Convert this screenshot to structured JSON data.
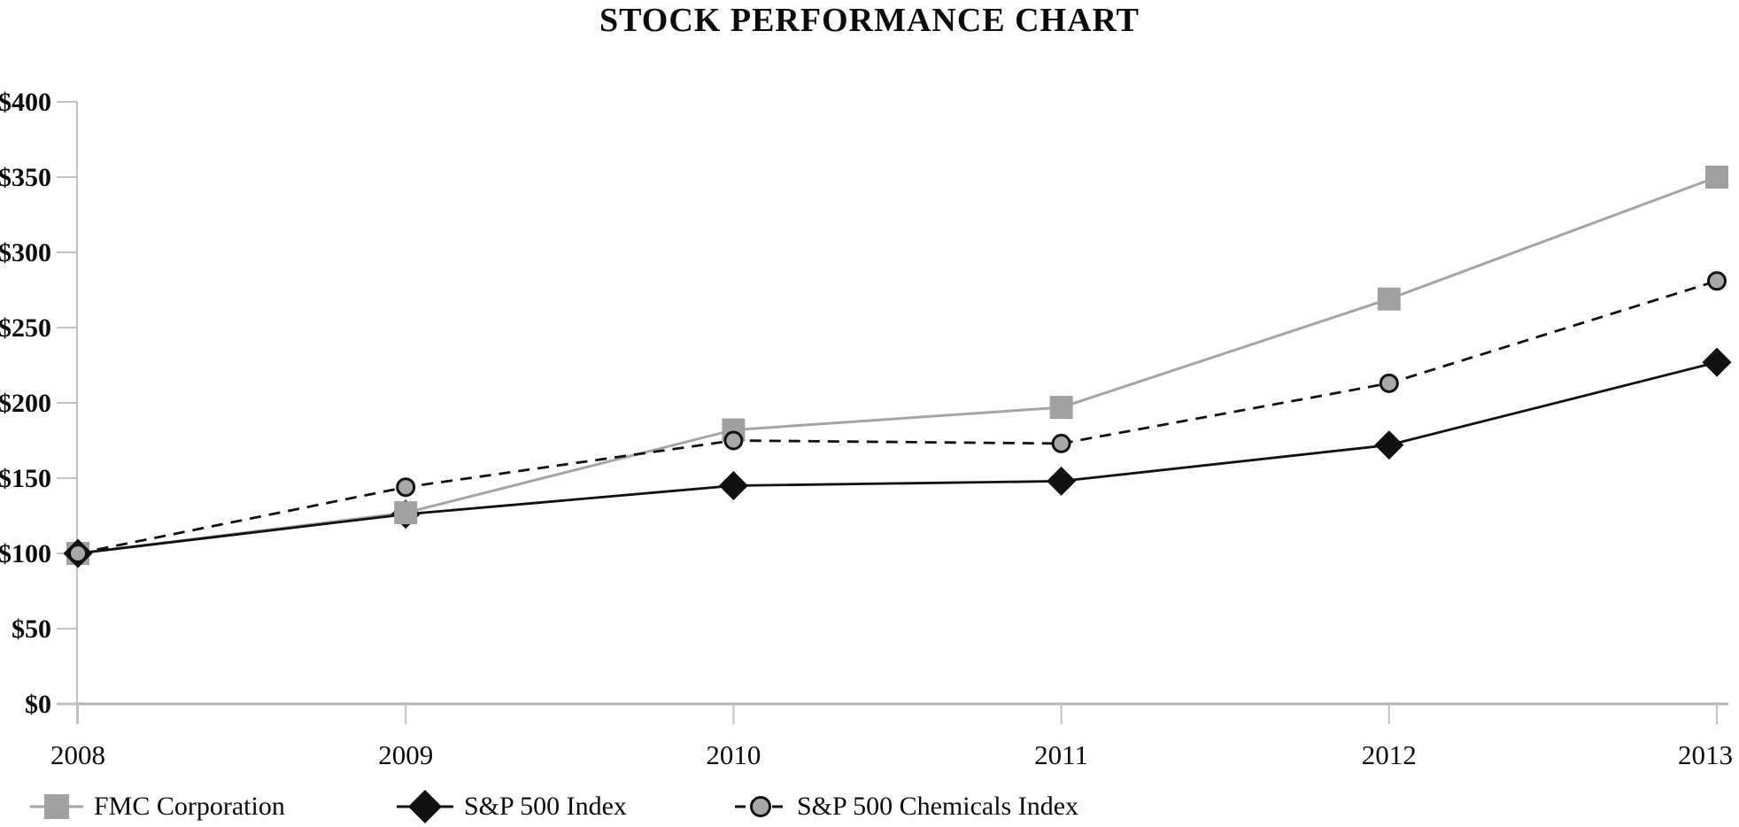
{
  "chart_data": {
    "type": "line",
    "title": "STOCK PERFORMANCE CHART",
    "x": [
      "2008",
      "2009",
      "2010",
      "2011",
      "2012",
      "2013"
    ],
    "xlabel": "",
    "ylabel": "",
    "y_axis": {
      "min": 0,
      "max": 400,
      "step": 50,
      "tick_labels": [
        "$0",
        "$50",
        "$100",
        "$150",
        "$200",
        "$250",
        "$300",
        "$350",
        "$400"
      ]
    },
    "grid": false,
    "legend_position": "bottom-left",
    "colors": {
      "series_gray": "#a5a5a5",
      "series_black": "#111111",
      "axis_gray": "#c2c2c2",
      "baseline_gray": "#b5b5b5",
      "text": "#0c0c0c"
    },
    "series": [
      {
        "name": "FMC Corporation",
        "marker": "square",
        "line_style": "solid",
        "line_color": "#a5a5a5",
        "marker_fill": "#a1a1a1",
        "marker_stroke": "none",
        "values": [
          100,
          127,
          182,
          197,
          269,
          350
        ]
      },
      {
        "name": "S&P 500 Index",
        "marker": "diamond",
        "line_style": "solid",
        "line_color": "#111111",
        "marker_fill": "#111111",
        "marker_stroke": "none",
        "values": [
          100,
          126,
          145,
          148,
          172,
          227
        ]
      },
      {
        "name": "S&P 500 Chemicals Index",
        "marker": "circle",
        "line_style": "dashed",
        "line_color": "#111111",
        "marker_fill": "#a8a8a8",
        "marker_stroke": "#111111",
        "values": [
          100,
          144,
          175,
          173,
          213,
          281
        ]
      }
    ]
  }
}
